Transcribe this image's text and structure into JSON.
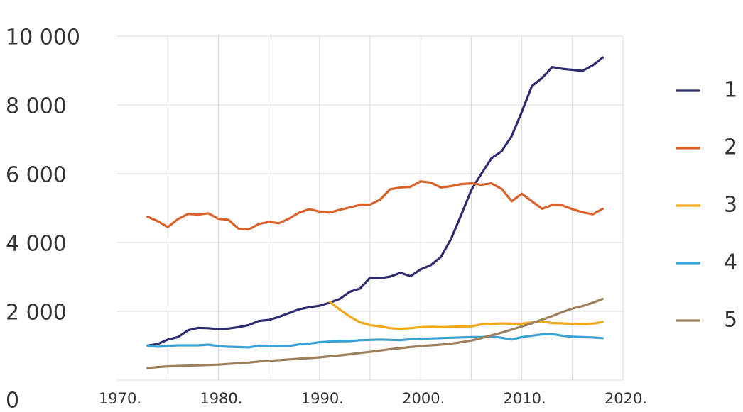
{
  "chart_data": {
    "type": "line",
    "title": "",
    "xlabel": "",
    "ylabel": "",
    "xlim": [
      1970,
      2020
    ],
    "ylim": [
      0,
      10000
    ],
    "grid": true,
    "legend_position": "right",
    "y_tick_labels": [
      {
        "value": 0,
        "label": "0"
      },
      {
        "value": 2000,
        "label": "2 000"
      },
      {
        "value": 4000,
        "label": "4 000"
      },
      {
        "value": 6000,
        "label": "6 000"
      },
      {
        "value": 8000,
        "label": "8 000"
      },
      {
        "value": 10000,
        "label": "10 000"
      }
    ],
    "x_tick_labels": [
      {
        "value": 1970,
        "label": "1970."
      },
      {
        "value": 1980,
        "label": "1980."
      },
      {
        "value": 1990,
        "label": "1990."
      },
      {
        "value": 2000,
        "label": "2000."
      },
      {
        "value": 2010,
        "label": "2010."
      },
      {
        "value": 2020,
        "label": "2020."
      }
    ],
    "x": [
      1973,
      1974,
      1975,
      1976,
      1977,
      1978,
      1979,
      1980,
      1981,
      1982,
      1983,
      1984,
      1985,
      1986,
      1987,
      1988,
      1989,
      1990,
      1991,
      1992,
      1993,
      1994,
      1995,
      1996,
      1997,
      1998,
      1999,
      2000,
      2001,
      2002,
      2003,
      2004,
      2005,
      2006,
      2007,
      2008,
      2009,
      2010,
      2011,
      2012,
      2013,
      2014,
      2015,
      2016,
      2017,
      2018
    ],
    "series": [
      {
        "name": "1",
        "color": "#2e2b6e",
        "values": [
          1000,
          1050,
          1180,
          1250,
          1450,
          1520,
          1510,
          1480,
          1500,
          1540,
          1600,
          1720,
          1750,
          1840,
          1950,
          2060,
          2120,
          2160,
          2250,
          2360,
          2570,
          2660,
          2980,
          2960,
          3010,
          3120,
          3020,
          3220,
          3340,
          3580,
          4100,
          4800,
          5520,
          6000,
          6450,
          6650,
          7100,
          7800,
          8550,
          8780,
          9100,
          9050,
          9020,
          8990,
          9150,
          9380
        ]
      },
      {
        "name": "2",
        "color": "#d9622b",
        "values": [
          4750,
          4620,
          4450,
          4680,
          4830,
          4810,
          4850,
          4690,
          4660,
          4400,
          4380,
          4540,
          4600,
          4560,
          4700,
          4870,
          4970,
          4900,
          4870,
          4950,
          5020,
          5090,
          5100,
          5250,
          5550,
          5600,
          5620,
          5780,
          5740,
          5600,
          5640,
          5700,
          5720,
          5680,
          5720,
          5560,
          5200,
          5420,
          5200,
          4980,
          5090,
          5080,
          4970,
          4880,
          4820,
          4980
        ]
      },
      {
        "name": "3",
        "color": "#f0a818",
        "values": [
          null,
          null,
          null,
          null,
          null,
          null,
          null,
          null,
          null,
          null,
          null,
          null,
          null,
          null,
          null,
          null,
          null,
          null,
          2280,
          2050,
          1850,
          1680,
          1600,
          1560,
          1510,
          1490,
          1510,
          1540,
          1550,
          1540,
          1550,
          1560,
          1560,
          1620,
          1630,
          1650,
          1640,
          1640,
          1680,
          1700,
          1660,
          1650,
          1630,
          1620,
          1640,
          1690
        ]
      },
      {
        "name": "4",
        "color": "#3aa3d6",
        "values": [
          1000,
          970,
          990,
          1010,
          1010,
          1010,
          1030,
          990,
          970,
          960,
          950,
          1000,
          1000,
          990,
          990,
          1040,
          1060,
          1100,
          1120,
          1130,
          1130,
          1160,
          1170,
          1180,
          1170,
          1160,
          1190,
          1200,
          1210,
          1220,
          1230,
          1240,
          1250,
          1250,
          1270,
          1230,
          1180,
          1250,
          1290,
          1330,
          1340,
          1290,
          1260,
          1250,
          1240,
          1220
        ]
      },
      {
        "name": "5",
        "color": "#9c805c",
        "values": [
          350,
          380,
          400,
          410,
          420,
          430,
          440,
          450,
          470,
          490,
          510,
          540,
          560,
          580,
          600,
          620,
          640,
          660,
          690,
          720,
          750,
          790,
          820,
          860,
          900,
          930,
          960,
          990,
          1010,
          1030,
          1060,
          1100,
          1150,
          1220,
          1300,
          1380,
          1470,
          1560,
          1650,
          1760,
          1860,
          1980,
          2080,
          2150,
          2250,
          2360
        ]
      }
    ]
  }
}
